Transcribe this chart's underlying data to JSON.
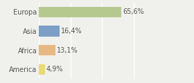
{
  "categories": [
    "Europa",
    "Asia",
    "Africa",
    "America"
  ],
  "values": [
    65.6,
    16.4,
    13.1,
    4.9
  ],
  "labels": [
    "65,6%",
    "16,4%",
    "13,1%",
    "4,9%"
  ],
  "bar_colors": [
    "#b5c98e",
    "#7b9fc7",
    "#e8b882",
    "#e8d97a"
  ],
  "background_color": "#f0f0ec",
  "xlim": [
    0,
    100
  ],
  "label_fontsize": 7.0,
  "tick_fontsize": 7.0,
  "bar_height": 0.55,
  "grid_color": "#ffffff",
  "grid_linewidth": 1.0,
  "label_color": "#555555",
  "tick_color": "#555555"
}
